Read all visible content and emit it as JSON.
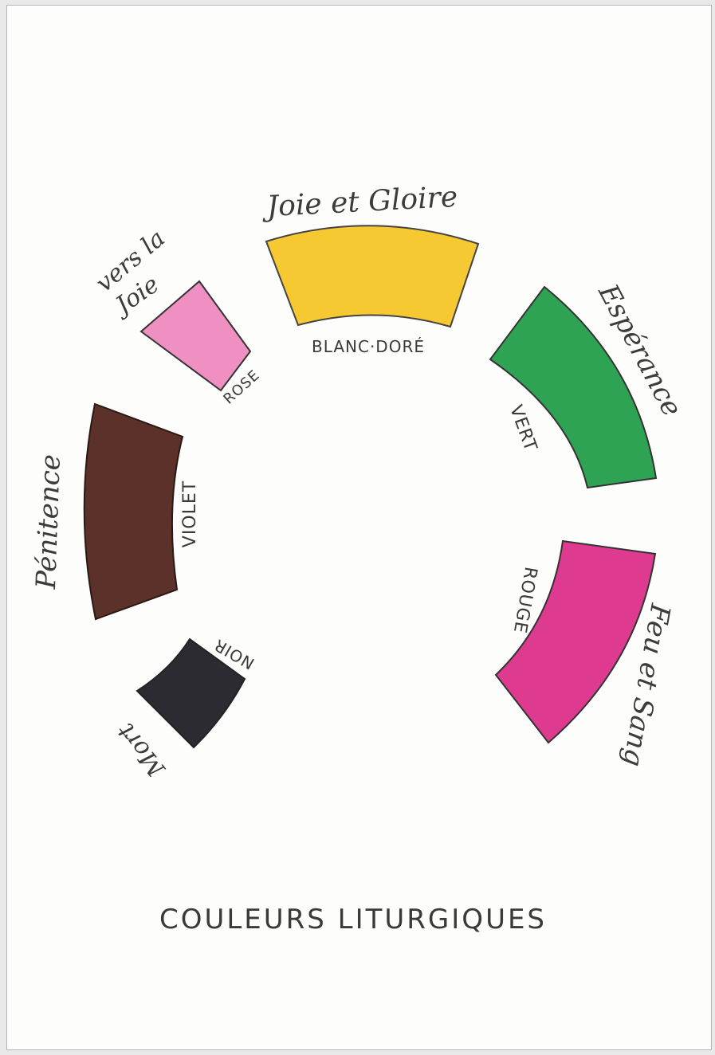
{
  "title": "COULEURS LITURGIQUES",
  "segments": [
    {
      "id": "yellow",
      "color_name": "BLANC·DORÉ",
      "meaning": "Joie et Gloire",
      "fill": "#f6c832"
    },
    {
      "id": "green",
      "color_name": "VERT",
      "meaning": "Espérance",
      "fill": "#2fa354"
    },
    {
      "id": "magenta",
      "color_name": "ROUGE",
      "meaning": "Feu et Sang",
      "fill": "#dd3a90"
    },
    {
      "id": "black",
      "color_name": "NOIR",
      "meaning": "Mort",
      "fill": "#2c2b32"
    },
    {
      "id": "brown",
      "color_name": "VIOLET",
      "meaning": "Pénitence",
      "fill": "#5b3129"
    },
    {
      "id": "pink",
      "color_name": "ROSE",
      "meaning_lines": [
        "vers la",
        "Joie"
      ],
      "fill": "#ef8fc2"
    }
  ]
}
